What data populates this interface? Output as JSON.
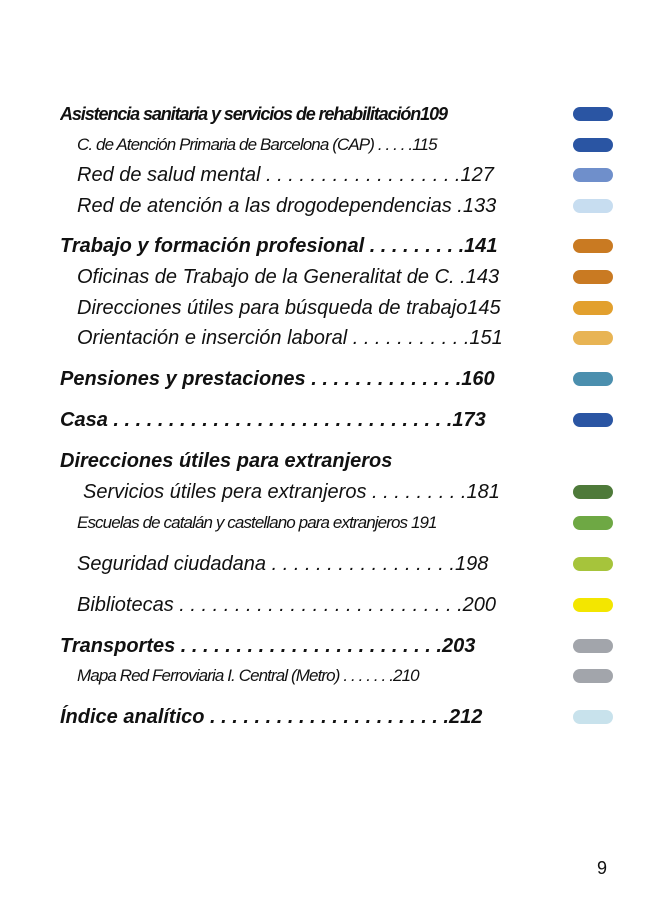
{
  "entries": [
    {
      "text": "Asistencia sanitaria y servicios de rehabilitación109",
      "bold": true,
      "narrow": true,
      "tab": "#2a55a3"
    },
    {
      "text": "C. de Atención Primaria de Barcelona (CAP) . . . . .115",
      "bold": false,
      "narrow": true,
      "small": true,
      "tab": "#2a55a3"
    },
    {
      "text": "Red de salud mental  . . . . . . . . . . . . . . . . . .127",
      "bold": false,
      "tab": "#6f8fcb"
    },
    {
      "text": "Red de atención a las drogodependencias  .133",
      "bold": false,
      "tab": "#c7ddf0"
    },
    {
      "text": "Trabajo y formación profesional . . . . . . . . .141",
      "bold": true,
      "tab": "#c97a22"
    },
    {
      "text": "Oficinas de Trabajo de la Generalitat de C. .143",
      "bold": false,
      "tab": "#c97a22"
    },
    {
      "text": "Direcciones útiles para búsqueda de trabajo145",
      "bold": false,
      "tab": "#e2a02e"
    },
    {
      "text": "Orientación e inserción laboral . . . . . . . . . . .151",
      "bold": false,
      "tab": "#e8b454"
    },
    {
      "text": "Pensiones y prestaciones  . . . . . . . . . . . . . .160",
      "bold": true,
      "tab": "#4b8fae"
    },
    {
      "text": "Casa  . . . . . . . . . . . . . . . . . . . . . . . . . . . . . . .173",
      "bold": true,
      "tab": "#2a55a3"
    },
    {
      "text": "Direcciones útiles para extranjeros",
      "bold": true,
      "tab": ""
    },
    {
      "text": "Servicios útiles pera extranjeros  . . . . . . . . .181",
      "bold": false,
      "tab": "#4e7a3a"
    },
    {
      "text": "Escuelas de catalán y castellano para extranjeros 191",
      "bold": false,
      "narrow": true,
      "small": true,
      "tab": "#6ea844"
    },
    {
      "text": "Seguridad ciudadana    . . . . . . . . . . . . . . . . .198",
      "bold": false,
      "tab": "#a6c43b"
    },
    {
      "text": "Bibliotecas  . . . . . . . . . . . . . . . . . . . . . . . . . .200",
      "bold": false,
      "tab": "#f3e600"
    },
    {
      "text": "Transportes    . . . . . . . . . . . . . . . . . . . . . . . .203",
      "bold": true,
      "tab": "#a2a5ab"
    },
    {
      "text": "Mapa Red Ferroviaria I. Central (Metro)  . . . . . . .210",
      "bold": false,
      "narrow": true,
      "small": true,
      "tab": "#a2a5ab"
    },
    {
      "text": "Índice analítico  . . . . . . . . . . . . . . . . . . . . . .212",
      "bold": true,
      "tab": "#c8e2ec"
    }
  ],
  "page_number": "9"
}
